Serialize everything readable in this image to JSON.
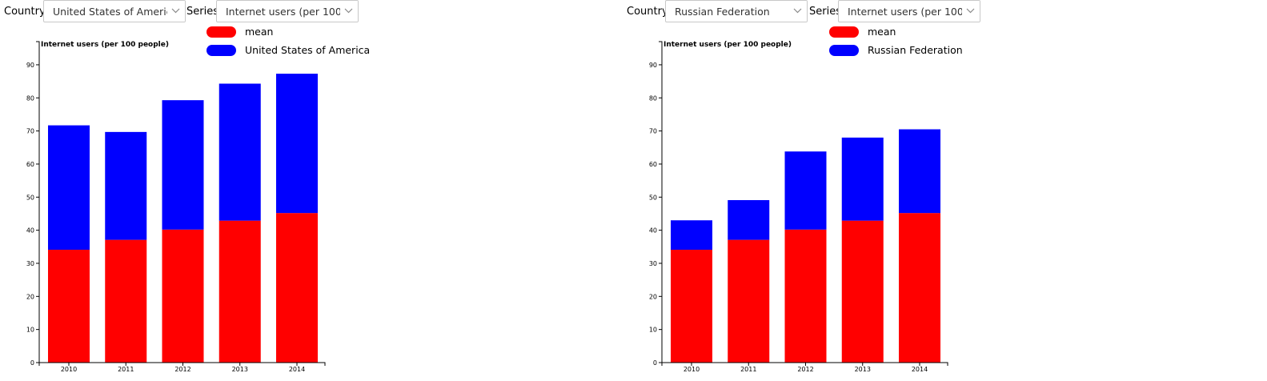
{
  "controls": {
    "country_label": "Country:",
    "series_label": "Series:"
  },
  "colors": {
    "mean": "#ff0000",
    "country": "#0000ff"
  },
  "icons": {
    "dropdown": "chevron-down-icon"
  },
  "chart_data": [
    {
      "type": "bar",
      "stacked": true,
      "country": "United States of America",
      "series_selected": "Internet users (per 100 people)",
      "title": "Internet users (per 100 people)",
      "categories": [
        "2010",
        "2011",
        "2012",
        "2013",
        "2014"
      ],
      "series": [
        {
          "name": "mean",
          "values": [
            34.1,
            37.1,
            40.2,
            42.9,
            45.2
          ]
        },
        {
          "name": "United States of America",
          "values": [
            37.6,
            32.6,
            39.1,
            41.4,
            42.1
          ]
        }
      ],
      "ylim": [
        0,
        97
      ],
      "yticks": [
        0,
        10,
        20,
        30,
        40,
        50,
        60,
        70,
        80,
        90
      ],
      "legend": [
        "mean",
        "United States of America"
      ],
      "legend_position": "top-right"
    },
    {
      "type": "bar",
      "stacked": true,
      "country": "Russian Federation",
      "series_selected": "Internet users (per 100 people)",
      "title": "Internet users (per 100 people)",
      "categories": [
        "2010",
        "2011",
        "2012",
        "2013",
        "2014"
      ],
      "series": [
        {
          "name": "mean",
          "values": [
            34.1,
            37.1,
            40.2,
            42.9,
            45.2
          ]
        },
        {
          "name": "Russian Federation",
          "values": [
            8.9,
            12.0,
            23.6,
            25.1,
            25.3
          ]
        }
      ],
      "ylim": [
        0,
        97
      ],
      "yticks": [
        0,
        10,
        20,
        30,
        40,
        50,
        60,
        70,
        80,
        90
      ],
      "legend": [
        "mean",
        "Russian Federation"
      ],
      "legend_position": "top-right"
    }
  ]
}
